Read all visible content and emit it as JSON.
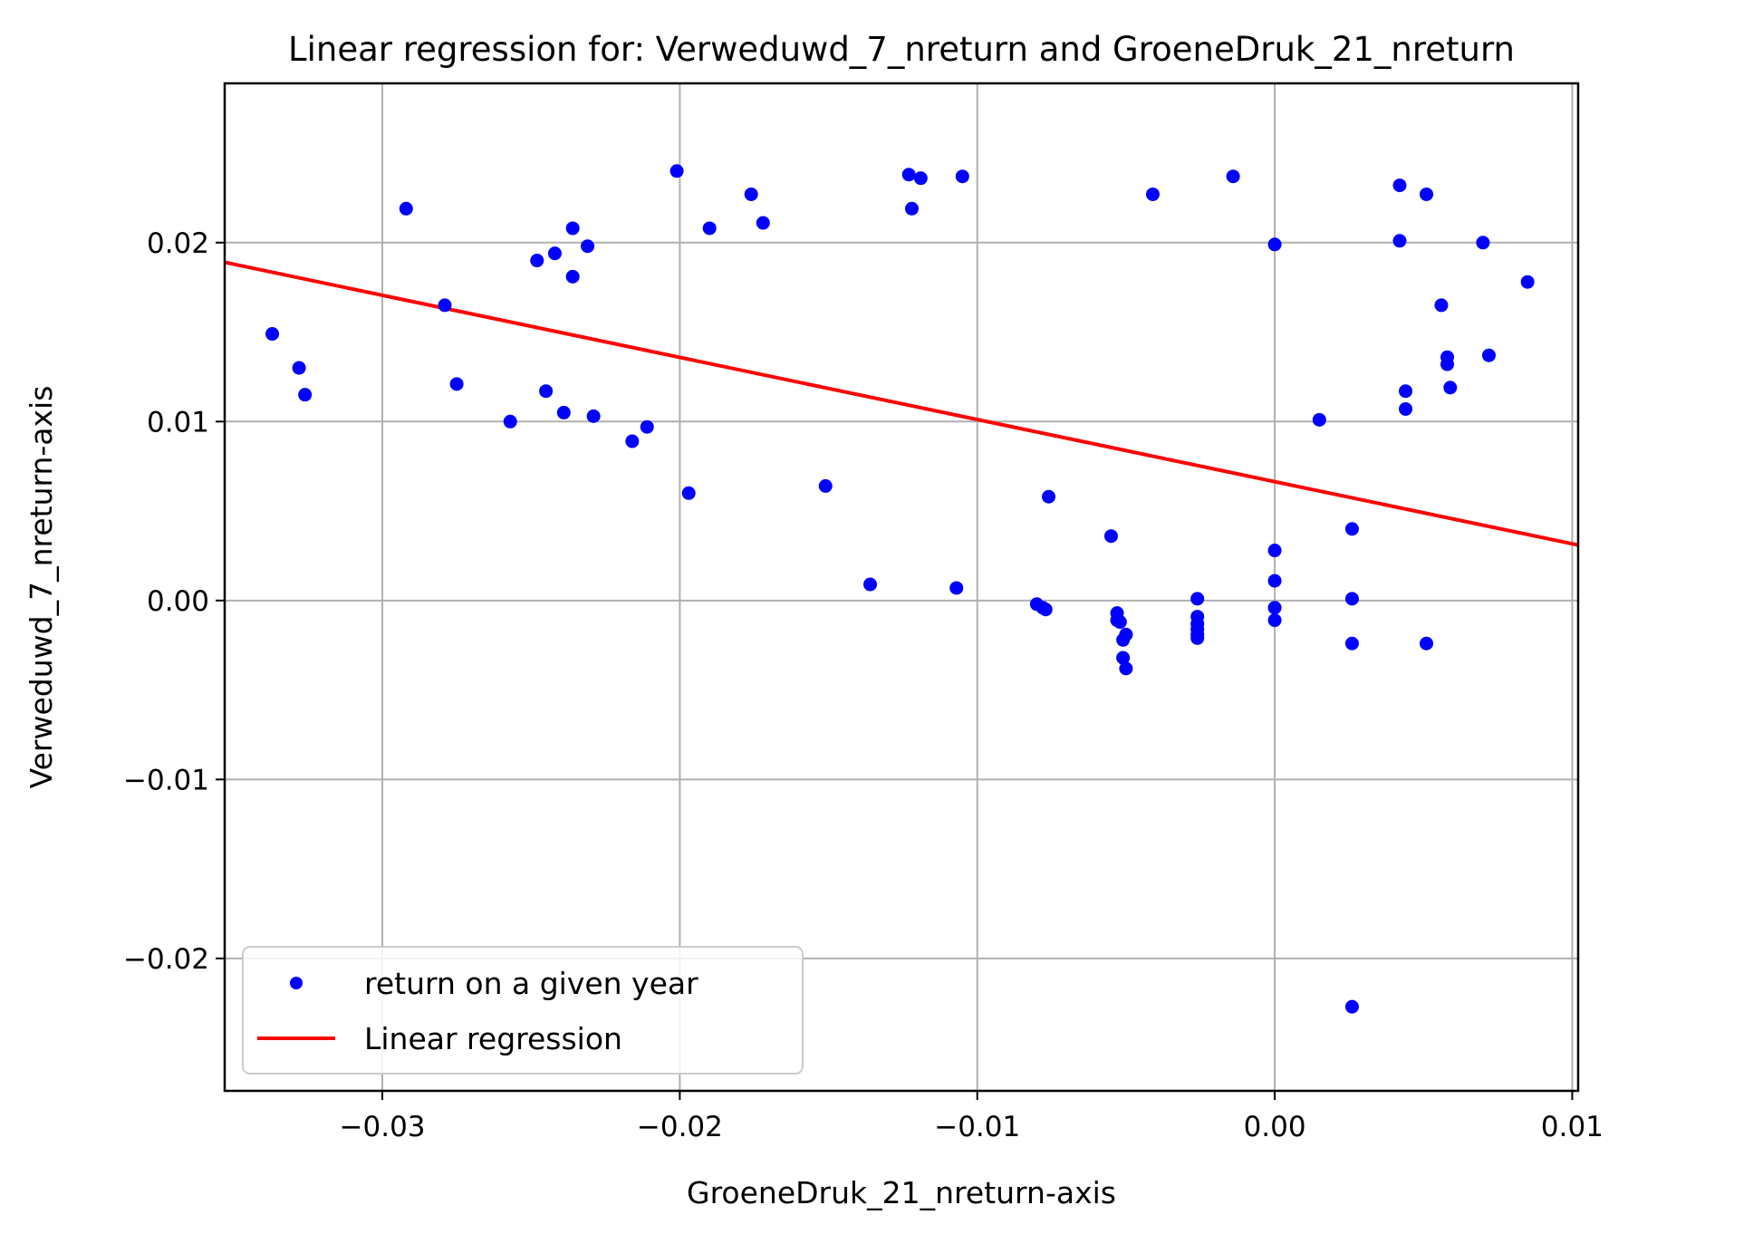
{
  "chart_data": {
    "type": "scatter",
    "title": "Linear regression for: Verweduwd_7_nreturn and GroeneDruk_21_nreturn",
    "xlabel": "GroeneDruk_21_nreturn-axis",
    "ylabel": "Verweduwd_7_nreturn-axis",
    "xlim": [
      -0.0353,
      0.0102
    ],
    "ylim": [
      -0.0274,
      0.0289
    ],
    "grid": true,
    "legend_position": "lower-left",
    "x_ticks": [
      {
        "value": -0.03,
        "label": "−0.03"
      },
      {
        "value": -0.02,
        "label": "−0.02"
      },
      {
        "value": -0.01,
        "label": "−0.01"
      },
      {
        "value": 0.0,
        "label": "0.00"
      },
      {
        "value": 0.01,
        "label": "0.01"
      }
    ],
    "y_ticks": [
      {
        "value": -0.02,
        "label": "−0.02"
      },
      {
        "value": -0.01,
        "label": "−0.01"
      },
      {
        "value": 0.0,
        "label": "0.00"
      },
      {
        "value": 0.01,
        "label": "0.01"
      },
      {
        "value": 0.02,
        "label": "0.02"
      }
    ],
    "series": [
      {
        "name": "return on a given year",
        "kind": "scatter",
        "color": "#0000ff",
        "points": [
          [
            -0.0337,
            0.0149
          ],
          [
            -0.0328,
            0.013
          ],
          [
            -0.0326,
            0.0115
          ],
          [
            -0.0292,
            0.0219
          ],
          [
            -0.0279,
            0.0165
          ],
          [
            -0.0275,
            0.0121
          ],
          [
            -0.0257,
            0.01
          ],
          [
            -0.0248,
            0.019
          ],
          [
            -0.0245,
            0.0117
          ],
          [
            -0.0242,
            0.0194
          ],
          [
            -0.0239,
            0.0105
          ],
          [
            -0.0236,
            0.0208
          ],
          [
            -0.0236,
            0.0181
          ],
          [
            -0.0231,
            0.0198
          ],
          [
            -0.0229,
            0.0103
          ],
          [
            -0.0216,
            0.0089
          ],
          [
            -0.0211,
            0.0097
          ],
          [
            -0.0201,
            0.024
          ],
          [
            -0.0197,
            0.006
          ],
          [
            -0.019,
            0.0208
          ],
          [
            -0.0176,
            0.0227
          ],
          [
            -0.0172,
            0.0211
          ],
          [
            -0.0151,
            0.0064
          ],
          [
            -0.0136,
            0.0009
          ],
          [
            -0.0123,
            0.0238
          ],
          [
            -0.0122,
            0.0219
          ],
          [
            -0.0119,
            0.0236
          ],
          [
            -0.0107,
            0.0007
          ],
          [
            -0.0105,
            0.0237
          ],
          [
            -0.008,
            -0.0002
          ],
          [
            -0.0078,
            -0.0004
          ],
          [
            -0.0077,
            -0.0005
          ],
          [
            -0.0076,
            0.0058
          ],
          [
            -0.0055,
            0.0036
          ],
          [
            -0.0053,
            -0.0007
          ],
          [
            -0.0053,
            -0.0011
          ],
          [
            -0.0052,
            -0.0012
          ],
          [
            -0.0051,
            -0.0022
          ],
          [
            -0.0051,
            -0.0032
          ],
          [
            -0.005,
            -0.0019
          ],
          [
            -0.005,
            -0.0038
          ],
          [
            -0.0041,
            0.0227
          ],
          [
            -0.0026,
            0.0001
          ],
          [
            -0.0026,
            -0.0009
          ],
          [
            -0.0026,
            -0.0013
          ],
          [
            -0.0026,
            -0.0016
          ],
          [
            -0.0026,
            -0.0019
          ],
          [
            -0.0026,
            -0.0021
          ],
          [
            -0.0014,
            0.0237
          ],
          [
            0.0,
            0.0199
          ],
          [
            0.0,
            0.0028
          ],
          [
            0.0,
            0.0011
          ],
          [
            0.0,
            -0.0004
          ],
          [
            0.0,
            -0.0011
          ],
          [
            0.0015,
            0.0101
          ],
          [
            0.0026,
            0.004
          ],
          [
            0.0026,
            0.0001
          ],
          [
            0.0026,
            -0.0024
          ],
          [
            0.0026,
            -0.0227
          ],
          [
            0.0042,
            0.0232
          ],
          [
            0.0042,
            0.0201
          ],
          [
            0.0044,
            0.0117
          ],
          [
            0.0044,
            0.0107
          ],
          [
            0.0051,
            0.0227
          ],
          [
            0.0051,
            -0.0024
          ],
          [
            0.0056,
            0.0165
          ],
          [
            0.0058,
            0.0136
          ],
          [
            0.0058,
            0.0132
          ],
          [
            0.0059,
            0.0119
          ],
          [
            0.007,
            0.02
          ],
          [
            0.0072,
            0.0137
          ],
          [
            0.0085,
            0.0178
          ]
        ]
      },
      {
        "name": "Linear regression",
        "kind": "line",
        "color": "#ff0000",
        "points": [
          [
            -0.0353,
            0.0189
          ],
          [
            0.0102,
            0.0031
          ]
        ]
      }
    ]
  }
}
